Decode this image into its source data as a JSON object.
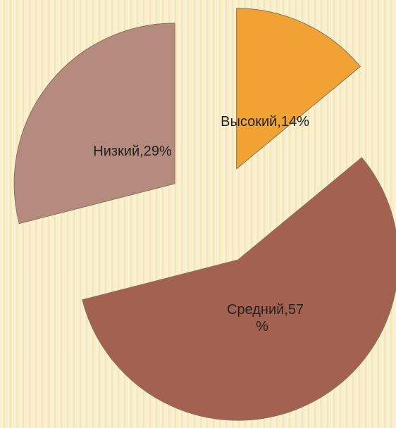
{
  "chart_data": {
    "type": "pie",
    "categories": [
      "Высокий",
      "Средний",
      "Низкий"
    ],
    "values": [
      14,
      57,
      29
    ],
    "value_labels": [
      "Высокий,14%",
      "Средний,57 %",
      "Низкий,29%"
    ],
    "colors": [
      "#f0a233",
      "#a3624f",
      "#b58b80"
    ]
  }
}
